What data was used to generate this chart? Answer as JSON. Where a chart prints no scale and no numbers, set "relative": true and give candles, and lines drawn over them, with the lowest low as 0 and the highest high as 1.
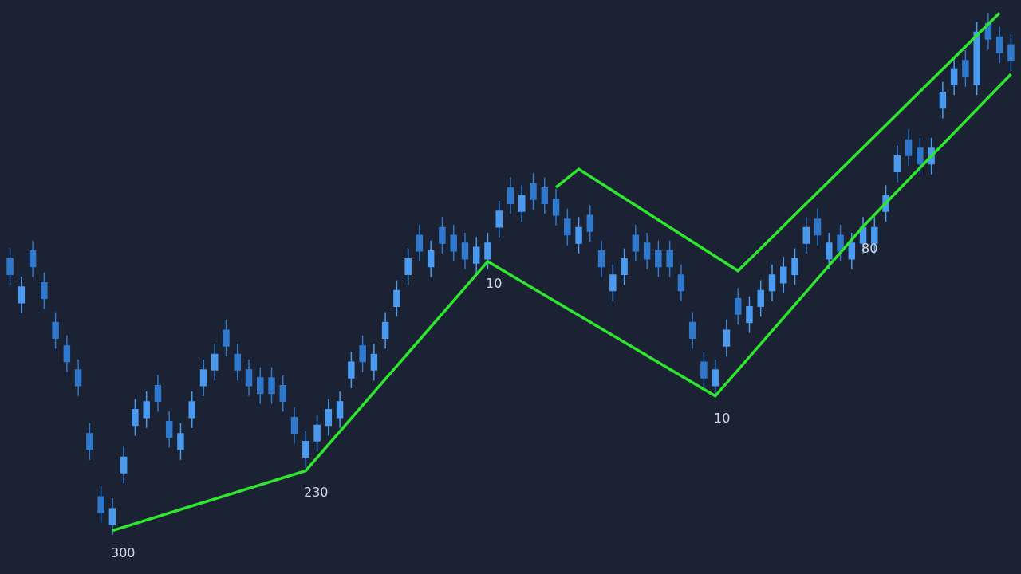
{
  "chart_data": {
    "type": "candlestick",
    "relative": true,
    "categories": [
      null,
      null,
      null,
      null,
      null,
      null,
      null,
      null,
      null,
      null,
      null,
      null,
      null,
      null,
      null,
      null,
      null,
      null,
      null,
      null,
      null,
      null,
      null,
      null,
      null,
      null,
      null,
      null,
      null,
      null,
      null,
      null,
      null,
      null,
      null,
      null,
      null,
      null,
      null,
      null,
      null,
      null,
      null,
      null,
      null,
      null,
      null,
      null,
      null,
      null,
      null,
      null,
      null,
      null,
      null,
      null,
      null,
      null,
      null,
      null,
      null,
      null,
      null,
      null,
      null,
      null,
      null,
      null,
      null,
      null,
      null,
      null,
      null,
      null,
      null,
      null,
      null,
      null,
      null,
      null,
      null,
      null,
      null,
      null,
      null,
      null,
      null,
      null,
      null
    ],
    "colors": [
      "#2f78cc",
      "#4a9af0",
      "#2f78cc",
      "#2f78cc",
      "#2f78cc",
      "#2f78cc",
      "#2f78cc",
      "#2f78cc",
      "#2f78cc",
      "#4a9af0",
      "#4a9af0",
      "#4a9af0",
      "#4a9af0",
      "#2f78cc",
      "#2f78cc",
      "#4a9af0",
      "#4a9af0",
      "#4a9af0",
      "#4a9af0",
      "#2f78cc",
      "#2f78cc",
      "#2f78cc",
      "#2f78cc",
      "#2f78cc",
      "#2f78cc",
      "#2f78cc",
      "#4a9af0",
      "#4a9af0",
      "#4a9af0",
      "#4a9af0",
      "#4a9af0",
      "#2f78cc",
      "#4a9af0",
      "#4a9af0",
      "#4a9af0",
      "#4a9af0",
      "#2f78cc",
      "#4a9af0",
      "#2f78cc",
      "#2f78cc",
      "#2f78cc",
      "#4a9af0",
      "#4a9af0",
      "#4a9af0",
      "#2f78cc",
      "#4a9af0",
      "#2f78cc",
      "#2f78cc",
      "#2f78cc",
      "#2f78cc",
      "#4a9af0",
      "#2f78cc",
      "#2f78cc",
      "#4a9af0",
      "#4a9af0",
      "#2f78cc",
      "#2f78cc",
      "#2f78cc",
      "#2f78cc",
      "#2f78cc",
      "#2f78cc",
      "#2f78cc",
      "#4a9af0",
      "#4a9af0",
      "#2f78cc",
      "#4a9af0",
      "#4a9af0",
      "#4a9af0",
      "#4a9af0",
      "#4a9af0",
      "#4a9af0",
      "#2f78cc",
      "#4a9af0",
      "#2f78cc",
      "#4a9af0",
      "#4a9af0",
      "#4a9af0",
      "#4a9af0",
      "#4a9af0",
      "#2f78cc",
      "#2f78cc",
      "#4a9af0",
      "#4a9af0",
      "#4a9af0",
      "#2f78cc",
      "#4a9af0",
      "#2f78cc",
      "#2f78cc",
      "#2f78cc"
    ],
    "ohlc": [
      [
        0.529,
        0.549,
        0.479,
        0.499
      ],
      [
        0.445,
        0.495,
        0.425,
        0.475
      ],
      [
        0.544,
        0.564,
        0.494,
        0.514
      ],
      [
        0.483,
        0.503,
        0.433,
        0.453
      ],
      [
        0.407,
        0.427,
        0.357,
        0.377
      ],
      [
        0.362,
        0.382,
        0.312,
        0.332
      ],
      [
        0.316,
        0.336,
        0.266,
        0.286
      ],
      [
        0.194,
        0.214,
        0.144,
        0.164
      ],
      [
        0.073,
        0.093,
        0.023,
        0.043
      ],
      [
        0.02,
        0.07,
        0,
        0.05
      ],
      [
        0.119,
        0.169,
        0.099,
        0.149
      ],
      [
        0.21,
        0.26,
        0.19,
        0.24
      ],
      [
        0.225,
        0.275,
        0.205,
        0.255
      ],
      [
        0.286,
        0.306,
        0.236,
        0.256
      ],
      [
        0.217,
        0.237,
        0.167,
        0.187
      ],
      [
        0.164,
        0.214,
        0.144,
        0.194
      ],
      [
        0.225,
        0.275,
        0.205,
        0.255
      ],
      [
        0.286,
        0.336,
        0.266,
        0.316
      ],
      [
        0.316,
        0.366,
        0.296,
        0.346
      ],
      [
        0.392,
        0.412,
        0.342,
        0.362
      ],
      [
        0.346,
        0.366,
        0.296,
        0.316
      ],
      [
        0.316,
        0.336,
        0.266,
        0.286
      ],
      [
        0.301,
        0.321,
        0.251,
        0.271
      ],
      [
        0.301,
        0.321,
        0.251,
        0.271
      ],
      [
        0.286,
        0.306,
        0.236,
        0.256
      ],
      [
        0.225,
        0.245,
        0.175,
        0.195
      ],
      [
        0.149,
        0.199,
        0.129,
        0.179
      ],
      [
        0.18,
        0.23,
        0.16,
        0.21
      ],
      [
        0.21,
        0.26,
        0.19,
        0.24
      ],
      [
        0.225,
        0.275,
        0.205,
        0.255
      ],
      [
        0.301,
        0.351,
        0.281,
        0.331
      ],
      [
        0.362,
        0.382,
        0.312,
        0.332
      ],
      [
        0.316,
        0.366,
        0.296,
        0.346
      ],
      [
        0.377,
        0.427,
        0.357,
        0.407
      ],
      [
        0.438,
        0.488,
        0.418,
        0.468
      ],
      [
        0.499,
        0.549,
        0.479,
        0.529
      ],
      [
        0.574,
        0.594,
        0.524,
        0.544
      ],
      [
        0.514,
        0.564,
        0.494,
        0.544
      ],
      [
        0.589,
        0.609,
        0.539,
        0.559
      ],
      [
        0.574,
        0.594,
        0.524,
        0.544
      ],
      [
        0.559,
        0.579,
        0.509,
        0.529
      ],
      [
        0.521,
        0.571,
        0.501,
        0.551
      ],
      [
        0.529,
        0.579,
        0.509,
        0.559
      ],
      [
        0.59,
        0.64,
        0.57,
        0.62
      ],
      [
        0.665,
        0.685,
        0.615,
        0.635
      ],
      [
        0.62,
        0.67,
        0.6,
        0.65
      ],
      [
        0.673,
        0.693,
        0.623,
        0.643
      ],
      [
        0.665,
        0.685,
        0.615,
        0.635
      ],
      [
        0.643,
        0.663,
        0.593,
        0.613
      ],
      [
        0.605,
        0.625,
        0.555,
        0.575
      ],
      [
        0.559,
        0.609,
        0.539,
        0.589
      ],
      [
        0.612,
        0.632,
        0.562,
        0.582
      ],
      [
        0.544,
        0.564,
        0.494,
        0.514
      ],
      [
        0.468,
        0.518,
        0.448,
        0.498
      ],
      [
        0.499,
        0.549,
        0.479,
        0.529
      ],
      [
        0.574,
        0.594,
        0.524,
        0.544
      ],
      [
        0.559,
        0.579,
        0.509,
        0.529
      ],
      [
        0.544,
        0.564,
        0.494,
        0.514
      ],
      [
        0.544,
        0.564,
        0.494,
        0.514
      ],
      [
        0.498,
        0.518,
        0.448,
        0.468
      ],
      [
        0.407,
        0.427,
        0.357,
        0.377
      ],
      [
        0.331,
        0.351,
        0.281,
        0.301
      ],
      [
        0.286,
        0.336,
        0.266,
        0.316
      ],
      [
        0.362,
        0.412,
        0.342,
        0.392
      ],
      [
        0.453,
        0.473,
        0.403,
        0.423
      ],
      [
        0.407,
        0.457,
        0.387,
        0.437
      ],
      [
        0.438,
        0.488,
        0.418,
        0.468
      ],
      [
        0.468,
        0.518,
        0.448,
        0.498
      ],
      [
        0.483,
        0.533,
        0.463,
        0.513
      ],
      [
        0.499,
        0.549,
        0.479,
        0.529
      ],
      [
        0.559,
        0.609,
        0.539,
        0.589
      ],
      [
        0.605,
        0.625,
        0.555,
        0.575
      ],
      [
        0.529,
        0.579,
        0.509,
        0.559
      ],
      [
        0.574,
        0.594,
        0.524,
        0.544
      ],
      [
        0.529,
        0.579,
        0.509,
        0.559
      ],
      [
        0.559,
        0.609,
        0.539,
        0.589
      ],
      [
        0.559,
        0.609,
        0.539,
        0.589
      ],
      [
        0.62,
        0.67,
        0.6,
        0.65
      ],
      [
        0.696,
        0.746,
        0.676,
        0.726
      ],
      [
        0.757,
        0.777,
        0.707,
        0.727
      ],
      [
        0.741,
        0.761,
        0.691,
        0.711
      ],
      [
        0.711,
        0.761,
        0.691,
        0.741
      ],
      [
        0.818,
        0.868,
        0.798,
        0.848
      ],
      [
        0.863,
        0.913,
        0.843,
        0.893
      ],
      [
        0.909,
        0.929,
        0.859,
        0.879
      ],
      [
        0.863,
        0.983,
        0.843,
        0.963
      ],
      [
        0.98,
        1,
        0.93,
        0.95
      ],
      [
        0.954,
        0.974,
        0.904,
        0.924
      ],
      [
        0.939,
        0.959,
        0.889,
        0.909
      ]
    ],
    "series": [
      {
        "type": "line",
        "color": "#2ee62e",
        "values": [
          null,
          null,
          null,
          null,
          null,
          null,
          null,
          null,
          null,
          0.008,
          null,
          null,
          null,
          null,
          null,
          null,
          null,
          null,
          null,
          null,
          null,
          null,
          null,
          null,
          null,
          null,
          0.123,
          null,
          null,
          null,
          null,
          null,
          null,
          null,
          null,
          null,
          null,
          null,
          null,
          null,
          null,
          null,
          0.524,
          null,
          null,
          null,
          null,
          null,
          null,
          null,
          null,
          null,
          null,
          null,
          null,
          null,
          null,
          null,
          null,
          null,
          null,
          null,
          0.266,
          null,
          null,
          null,
          null,
          null,
          null,
          null,
          null,
          null,
          null,
          null,
          null,
          0.591,
          null,
          null,
          null,
          null,
          null,
          null,
          null,
          null,
          null,
          null,
          null,
          null,
          0.883
        ]
      },
      {
        "type": "line",
        "color": "#2ee62e",
        "values": [
          null,
          null,
          null,
          null,
          null,
          null,
          null,
          null,
          null,
          null,
          null,
          null,
          null,
          null,
          null,
          null,
          null,
          null,
          null,
          null,
          null,
          null,
          null,
          null,
          null,
          null,
          null,
          null,
          null,
          null,
          null,
          null,
          null,
          null,
          null,
          null,
          null,
          null,
          null,
          null,
          null,
          null,
          null,
          null,
          null,
          null,
          null,
          null,
          0.666,
          null,
          0.701,
          null,
          null,
          null,
          null,
          null,
          null,
          null,
          null,
          null,
          null,
          null,
          null,
          null,
          0.506,
          null,
          null,
          null,
          null,
          null,
          null,
          null,
          null,
          null,
          null,
          null,
          null,
          null,
          null,
          null,
          null,
          null,
          null,
          null,
          null,
          null,
          null,
          1.0,
          null
        ]
      }
    ],
    "annotations": [
      "300",
      "230",
      "10",
      "10",
      "80"
    ]
  }
}
